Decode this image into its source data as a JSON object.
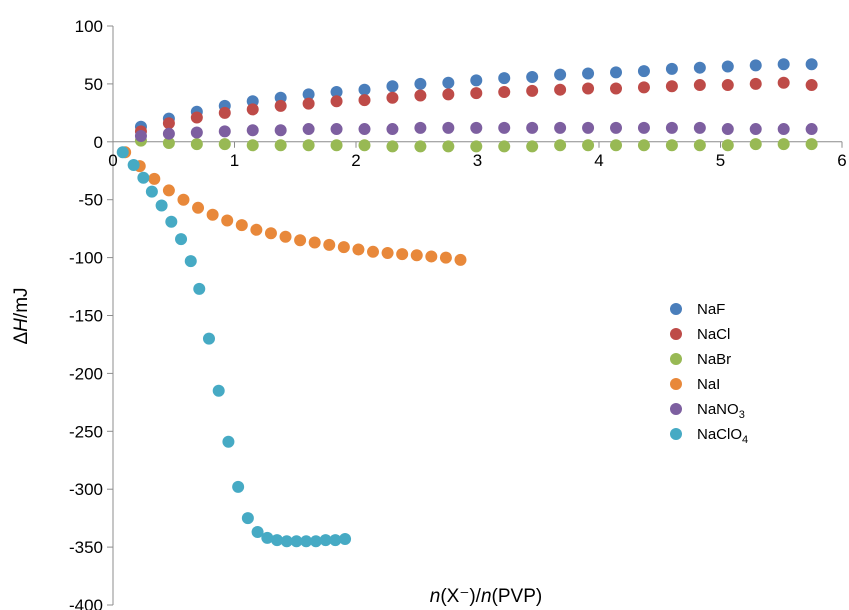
{
  "chart_data": {
    "type": "scatter",
    "xlabel": "n(X⁻)/n(PVP)",
    "ylabel": "ΔH/mJ",
    "xlim": [
      0,
      6
    ],
    "ylim": [
      -400,
      100
    ],
    "x_ticks": [
      "0",
      "1",
      "2",
      "3",
      "4",
      "5",
      "6"
    ],
    "y_ticks": [
      "100",
      "50",
      "0",
      "-50",
      "-100",
      "-150",
      "-200",
      "-250",
      "-300",
      "-350",
      "-400"
    ],
    "grid": false,
    "legend_position": "right",
    "series": [
      {
        "name": "NaF",
        "color": "#4a7ebb",
        "x": [
          0.23,
          0.46,
          0.69,
          0.92,
          1.15,
          1.38,
          1.61,
          1.84,
          2.07,
          2.3,
          2.53,
          2.76,
          2.99,
          3.22,
          3.45,
          3.68,
          3.91,
          4.14,
          4.37,
          4.6,
          4.83,
          5.06,
          5.29,
          5.52,
          5.75
        ],
        "y": [
          13,
          20,
          26,
          31,
          35,
          38,
          41,
          43,
          45,
          48,
          50,
          51,
          53,
          55,
          56,
          58,
          59,
          60,
          61,
          63,
          64,
          65,
          66,
          67,
          67
        ]
      },
      {
        "name": "NaCl",
        "color": "#be4b48",
        "x": [
          0.23,
          0.46,
          0.69,
          0.92,
          1.15,
          1.38,
          1.61,
          1.84,
          2.07,
          2.3,
          2.53,
          2.76,
          2.99,
          3.22,
          3.45,
          3.68,
          3.91,
          4.14,
          4.37,
          4.6,
          4.83,
          5.06,
          5.29,
          5.52,
          5.75
        ],
        "y": [
          9,
          16,
          21,
          25,
          28,
          31,
          33,
          35,
          36,
          38,
          40,
          41,
          42,
          43,
          44,
          45,
          46,
          46,
          47,
          48,
          49,
          49,
          50,
          51,
          49
        ]
      },
      {
        "name": "NaBr",
        "color": "#98b954",
        "x": [
          0.23,
          0.46,
          0.69,
          0.92,
          1.15,
          1.38,
          1.61,
          1.84,
          2.07,
          2.3,
          2.53,
          2.76,
          2.99,
          3.22,
          3.45,
          3.68,
          3.91,
          4.14,
          4.37,
          4.6,
          4.83,
          5.06,
          5.29,
          5.52,
          5.75
        ],
        "y": [
          1,
          -1,
          -2,
          -2,
          -3,
          -3,
          -3,
          -3,
          -3,
          -4,
          -4,
          -4,
          -4,
          -4,
          -4,
          -3,
          -3,
          -3,
          -3,
          -3,
          -3,
          -3,
          -2,
          -2,
          -2
        ]
      },
      {
        "name": "NaI",
        "color": "#e8883a",
        "x": [
          0.1,
          0.22,
          0.34,
          0.46,
          0.58,
          0.7,
          0.82,
          0.94,
          1.06,
          1.18,
          1.3,
          1.42,
          1.54,
          1.66,
          1.78,
          1.9,
          2.02,
          2.14,
          2.26,
          2.38,
          2.5,
          2.62,
          2.74,
          2.86
        ],
        "y": [
          -9,
          -21,
          -32,
          -42,
          -50,
          -57,
          -63,
          -68,
          -72,
          -76,
          -79,
          -82,
          -85,
          -87,
          -89,
          -91,
          -93,
          -95,
          -96,
          -97,
          -98,
          -99,
          -100,
          -102
        ]
      },
      {
        "name": "NaNO3",
        "color": "#7d5fa0",
        "x": [
          0.23,
          0.46,
          0.69,
          0.92,
          1.15,
          1.38,
          1.61,
          1.84,
          2.07,
          2.3,
          2.53,
          2.76,
          2.99,
          3.22,
          3.45,
          3.68,
          3.91,
          4.14,
          4.37,
          4.6,
          4.83,
          5.06,
          5.29,
          5.52,
          5.75
        ],
        "y": [
          5,
          7,
          8,
          9,
          10,
          10,
          11,
          11,
          11,
          11,
          12,
          12,
          12,
          12,
          12,
          12,
          12,
          12,
          12,
          12,
          12,
          11,
          11,
          11,
          11
        ]
      },
      {
        "name": "NaClO4",
        "color": "#46aac4",
        "x": [
          0.08,
          0.17,
          0.25,
          0.32,
          0.4,
          0.48,
          0.56,
          0.64,
          0.71,
          0.79,
          0.87,
          0.95,
          1.03,
          1.11,
          1.19,
          1.27,
          1.35,
          1.43,
          1.51,
          1.59,
          1.67,
          1.75,
          1.83,
          1.91
        ],
        "y": [
          -9,
          -20,
          -31,
          -43,
          -55,
          -69,
          -84,
          -103,
          -127,
          -170,
          -215,
          -259,
          -298,
          -325,
          -337,
          -342,
          -344,
          -345,
          -345,
          -345,
          -345,
          -344,
          -344,
          -343
        ]
      }
    ],
    "legend": [
      {
        "label": "NaF",
        "sub": ""
      },
      {
        "label": "NaCl",
        "sub": ""
      },
      {
        "label": "NaBr",
        "sub": ""
      },
      {
        "label": "NaI",
        "sub": ""
      },
      {
        "label": "NaNO",
        "sub": "3"
      },
      {
        "label": "NaClO",
        "sub": "4"
      }
    ]
  }
}
